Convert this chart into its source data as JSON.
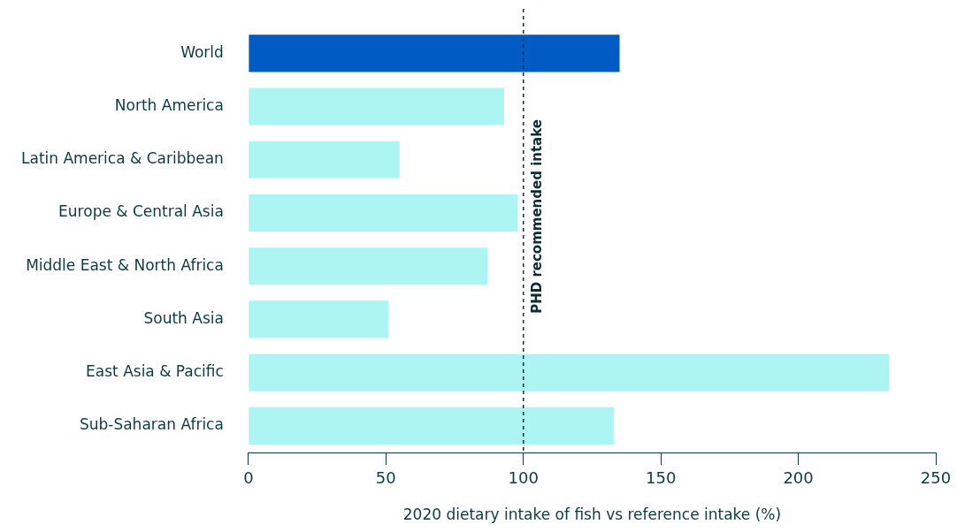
{
  "chart_data": {
    "type": "bar",
    "orientation": "horizontal",
    "xlabel": "2020 dietary intake of fish vs reference intake (%)",
    "categories": [
      "World",
      "North America",
      "Latin America & Caribbean",
      "Europe & Central Asia",
      "Middle East & North Africa",
      "South Asia",
      "East Asia & Pacific",
      "Sub-Saharan Africa"
    ],
    "values": [
      135,
      93,
      55,
      98,
      87,
      51,
      233,
      133
    ],
    "colors": [
      "#005bc5",
      "#adf5f2",
      "#adf5f2",
      "#adf5f2",
      "#adf5f2",
      "#adf5f2",
      "#adf5f2",
      "#adf5f2"
    ],
    "xlim": [
      0,
      250
    ],
    "xticks": [
      0,
      50,
      100,
      150,
      200,
      250
    ],
    "ref_lines": [
      {
        "axis": "x",
        "value": 100,
        "label": "PHD recommended intake",
        "color": "#0b2e36",
        "line_style": "dashed"
      }
    ],
    "grid": false,
    "legend": false
  }
}
